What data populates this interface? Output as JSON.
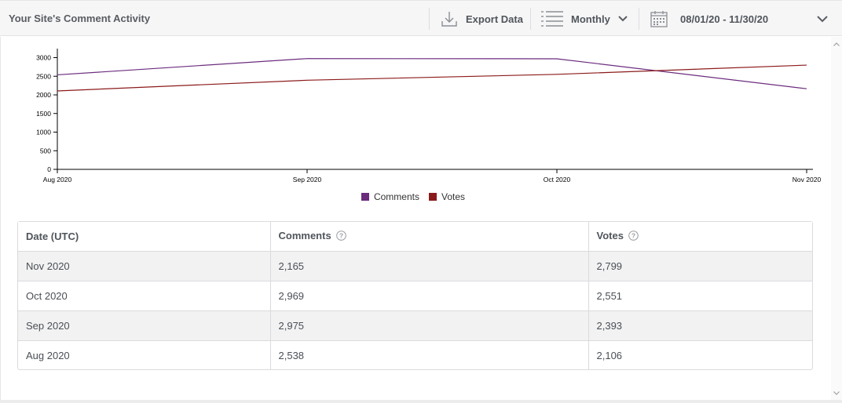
{
  "header": {
    "title": "Your Site's Comment Activity",
    "export_label": "Export Data",
    "interval_label": "Monthly",
    "date_range": "08/01/20 - 11/30/20"
  },
  "colors": {
    "comments": "#6b2c7e",
    "votes": "#8b1a1a"
  },
  "chart_data": {
    "type": "line",
    "x": [
      "Aug 2020",
      "Sep 2020",
      "Oct 2020",
      "Nov 2020"
    ],
    "series": [
      {
        "name": "Comments",
        "values": [
          2538,
          2975,
          2969,
          2165
        ]
      },
      {
        "name": "Votes",
        "values": [
          2106,
          2393,
          2551,
          2799
        ]
      }
    ],
    "y_ticks": [
      "0",
      "500",
      "1000",
      "1500",
      "2000",
      "2500",
      "3000"
    ],
    "ylim": [
      0,
      3200
    ],
    "legend_placement": "bottom"
  },
  "legend": {
    "comments": "Comments",
    "votes": "Votes"
  },
  "table": {
    "headers": {
      "date": "Date (UTC)",
      "comments": "Comments",
      "votes": "Votes"
    },
    "rows": [
      {
        "date": "Nov 2020",
        "comments": "2,165",
        "votes": "2,799"
      },
      {
        "date": "Oct 2020",
        "comments": "2,969",
        "votes": "2,551"
      },
      {
        "date": "Sep 2020",
        "comments": "2,975",
        "votes": "2,393"
      },
      {
        "date": "Aug 2020",
        "comments": "2,538",
        "votes": "2,106"
      }
    ]
  }
}
